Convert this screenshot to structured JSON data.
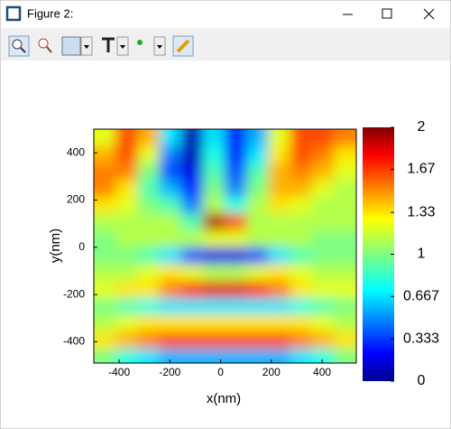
{
  "window": {
    "title": "Figure 2:"
  },
  "chart_data": {
    "type": "heatmap",
    "x": [
      -457,
      -371,
      -285,
      -199,
      -113,
      -27,
      59,
      145,
      231,
      317,
      403,
      489
    ],
    "y": [
      464,
      393,
      321,
      250,
      179,
      107,
      36,
      -36,
      -107,
      -179,
      -250,
      -321,
      -393,
      -464
    ],
    "z": [
      [
        1.2,
        1.6,
        1.4,
        0.7,
        0.1,
        0.7,
        0.3,
        0.6,
        1.2,
        1.6,
        1.6,
        1.5
      ],
      [
        1.4,
        1.6,
        1.2,
        0.5,
        0.1,
        0.8,
        0.3,
        0.7,
        1.3,
        1.6,
        1.5,
        1.3
      ],
      [
        1.5,
        1.5,
        1.0,
        0.4,
        0.2,
        0.9,
        0.4,
        0.9,
        1.4,
        1.5,
        1.4,
        1.2
      ],
      [
        1.5,
        1.3,
        0.9,
        0.6,
        0.3,
        1.0,
        0.5,
        1.0,
        1.4,
        1.4,
        1.2,
        1.1
      ],
      [
        1.3,
        1.2,
        1.0,
        0.9,
        0.5,
        1.1,
        0.8,
        1.1,
        1.3,
        1.2,
        1.1,
        1.1
      ],
      [
        1.1,
        1.1,
        1.1,
        1.1,
        0.9,
        1.9,
        1.6,
        1.1,
        1.1,
        1.1,
        1.1,
        1.1
      ],
      [
        1.0,
        1.1,
        1.1,
        1.1,
        1.1,
        1.2,
        1.2,
        1.1,
        1.1,
        1.1,
        1.0,
        1.0
      ],
      [
        1.0,
        1.0,
        0.9,
        0.7,
        0.4,
        0.2,
        0.2,
        0.4,
        0.7,
        0.9,
        1.0,
        1.0
      ],
      [
        1.1,
        1.1,
        1.2,
        1.3,
        1.2,
        1.1,
        1.1,
        1.2,
        1.3,
        1.2,
        1.1,
        1.1
      ],
      [
        1.2,
        1.3,
        1.3,
        1.5,
        1.7,
        1.8,
        1.8,
        1.7,
        1.5,
        1.3,
        1.2,
        1.2
      ],
      [
        1.0,
        0.9,
        0.8,
        0.7,
        0.7,
        0.7,
        0.7,
        0.7,
        0.7,
        0.8,
        0.9,
        1.0
      ],
      [
        1.1,
        1.2,
        1.3,
        1.3,
        1.3,
        1.3,
        1.3,
        1.3,
        1.3,
        1.3,
        1.2,
        1.1
      ],
      [
        1.3,
        1.4,
        1.5,
        1.6,
        1.6,
        1.6,
        1.6,
        1.6,
        1.6,
        1.5,
        1.4,
        1.3
      ],
      [
        1.0,
        0.8,
        0.7,
        0.6,
        0.6,
        0.6,
        0.6,
        0.6,
        0.6,
        0.7,
        0.8,
        1.0
      ]
    ],
    "xlim": [
      -500,
      535
    ],
    "ylim": [
      -490,
      500
    ],
    "xticks": [
      -400,
      -200,
      0,
      200,
      400
    ],
    "yticks": [
      -400,
      -200,
      0,
      200,
      400
    ],
    "xlabel": "x(nm)",
    "ylabel": "y(nm)",
    "colormap": "jet",
    "clim": [
      0,
      2
    ],
    "cticks": [
      0,
      0.333,
      0.667,
      1,
      1.33,
      1.67,
      2
    ]
  }
}
